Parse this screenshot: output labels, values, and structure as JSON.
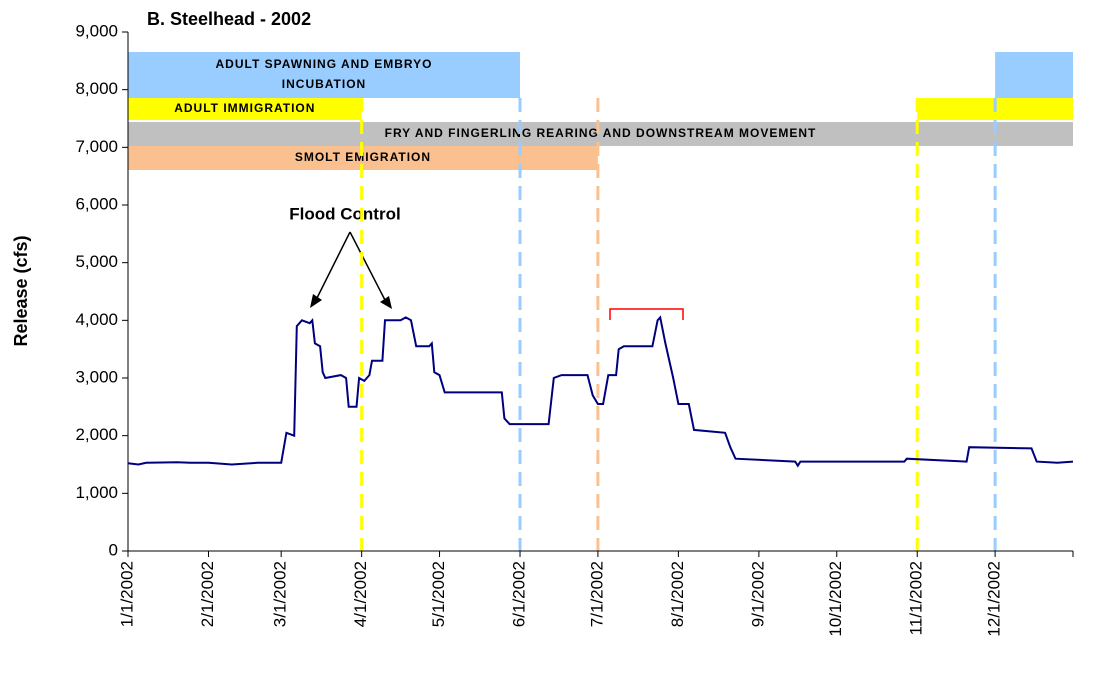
{
  "chart_data": {
    "type": "line",
    "title": "B.  Steelhead - 2002",
    "y_label": "Release (cfs)",
    "color": "#00007f",
    "xlim": [
      "1/1/2002",
      "12/31/2002"
    ],
    "xticks": [
      "1/1/2002",
      "2/1/2002",
      "3/1/2002",
      "4/1/2002",
      "5/1/2002",
      "6/1/2002",
      "7/1/2002",
      "8/1/2002",
      "9/1/2002",
      "10/1/2002",
      "11/1/2002",
      "12/1/2002"
    ],
    "ylim": [
      0,
      9000
    ],
    "yticks": [
      0,
      {
        "value": 1000,
        "label": "1,000"
      },
      {
        "value": 2000,
        "label": "2,000"
      },
      {
        "value": 3000,
        "label": "3,000"
      },
      {
        "value": 4000,
        "label": "4,000"
      },
      {
        "value": 5000,
        "label": "5,000"
      },
      {
        "value": 6000,
        "label": "6,000"
      },
      {
        "value": 7000,
        "label": "7,000"
      },
      {
        "value": 8000,
        "label": "8,000"
      },
      {
        "value": 9000,
        "label": "9,000"
      }
    ],
    "x": [
      "1/1/2002",
      "1/5/2002",
      "1/8/2002",
      "1/20/2002",
      "1/25/2002",
      "2/1/2002",
      "2/10/2002",
      "2/20/2002",
      "3/1/2002",
      "3/3/2002",
      "3/6/2002",
      "3/7/2002",
      "3/9/2002",
      "3/12/2002",
      "3/13/2002",
      "3/14/2002",
      "3/16/2002",
      "3/17/2002",
      "3/18/2002",
      "3/24/2002",
      "3/26/2002",
      "3/27/2002",
      "3/30/2002",
      "3/31/2002",
      "4/2/2002",
      "4/4/2002",
      "4/5/2002",
      "4/9/2002",
      "4/10/2002",
      "4/16/2002",
      "4/18/2002",
      "4/20/2002",
      "4/22/2002",
      "4/27/2002",
      "4/28/2002",
      "4/29/2002",
      "5/1/2002",
      "5/3/2002",
      "5/25/2002",
      "5/26/2002",
      "5/28/2002",
      "6/12/2002",
      "6/14/2002",
      "6/17/2002",
      "6/27/2002",
      "6/29/2002",
      "7/1/2002",
      "7/3/2002",
      "7/5/2002",
      "7/8/2002",
      "7/9/2002",
      "7/11/2002",
      "7/22/2002",
      "7/24/2002",
      "7/25/2002",
      "7/27/2002",
      "7/30/2002",
      "8/1/2002",
      "8/5/2002",
      "8/7/2002",
      "8/19/2002",
      "8/21/2002",
      "8/23/2002",
      "9/15/2002",
      "9/16/2002",
      "9/17/2002",
      "10/27/2002",
      "10/28/2002",
      "11/20/2002",
      "11/21/2002",
      "12/15/2002",
      "12/17/2002",
      "12/25/2002",
      "12/31/2002"
    ],
    "values": [
      1520,
      1500,
      1530,
      1540,
      1530,
      1530,
      1500,
      1530,
      1530,
      2050,
      2000,
      3900,
      4000,
      3950,
      4000,
      3600,
      3550,
      3100,
      3000,
      3050,
      3000,
      2500,
      2500,
      3000,
      2950,
      3050,
      3300,
      3300,
      4000,
      4000,
      4050,
      4000,
      3550,
      3550,
      3600,
      3100,
      3050,
      2750,
      2750,
      2300,
      2200,
      2200,
      3000,
      3050,
      3050,
      2700,
      2550,
      2550,
      3050,
      3050,
      3500,
      3550,
      3550,
      4000,
      4050,
      3600,
      3000,
      2550,
      2550,
      2100,
      2050,
      1800,
      1600,
      1550,
      1480,
      1550,
      1550,
      1600,
      1550,
      1800,
      1780,
      1550,
      1530,
      1550
    ],
    "periods": [
      {
        "label": "ADULT SPAWNING AND EMBRYO INCUBATION",
        "color": "#99ccff",
        "spans": [
          [
            "1/1/2002",
            "6/1/2002"
          ],
          [
            "12/1/2002",
            "12/31/2002"
          ]
        ]
      },
      {
        "label": "ADULT IMMIGRATION",
        "color": "#ffff00",
        "spans": [
          [
            "1/1/2002",
            "4/1/2002"
          ],
          [
            "11/1/2002",
            "12/31/2002"
          ]
        ]
      },
      {
        "label": "FRY AND FINGERLING REARING AND DOWNSTREAM MOVEMENT",
        "color": "#c0c0c0",
        "spans": [
          [
            "1/1/2002",
            "12/31/2002"
          ]
        ]
      },
      {
        "label": "SMOLT EMIGRATION",
        "color": "#fac090",
        "spans": [
          [
            "1/1/2002",
            "7/1/2002"
          ]
        ]
      }
    ],
    "annotation": "Flood Control"
  }
}
